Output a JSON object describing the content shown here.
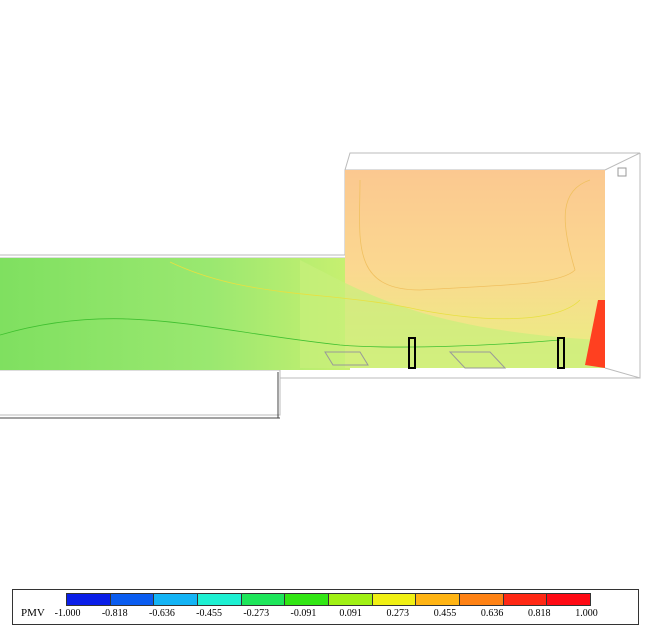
{
  "legend": {
    "title": "PMV",
    "ticks": [
      "-1.000",
      "-0.818",
      "-0.636",
      "-0.455",
      "-0.273",
      "-0.091",
      "0.091",
      "0.273",
      "0.455",
      "0.636",
      "0.818",
      "1.000"
    ],
    "colors": [
      "#0a1ee8",
      "#0a5cf0",
      "#14b4f5",
      "#1ef0d2",
      "#1ee65a",
      "#32e614",
      "#a0f014",
      "#f0f014",
      "#ffb414",
      "#ff8214",
      "#ff2814",
      "#ff0a14"
    ]
  },
  "chart_data": {
    "type": "heatmap",
    "quantity": "PMV",
    "range": [
      -1.0,
      1.0
    ]
  }
}
